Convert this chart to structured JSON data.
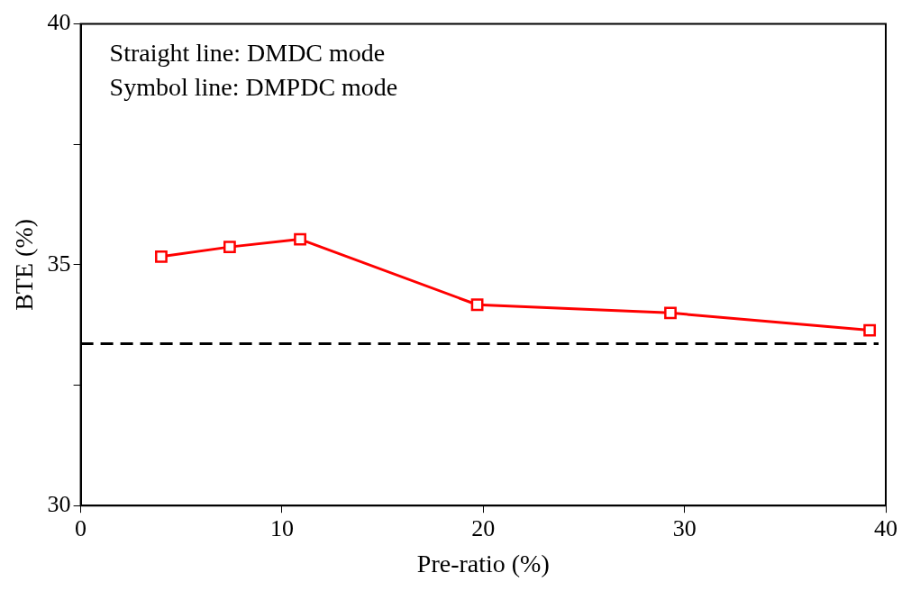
{
  "chart_data": {
    "type": "line",
    "xlabel": "Pre-ratio (%)",
    "ylabel": "BTE (%)",
    "annotations": [
      "Straight line: DMDC mode",
      "Symbol line: DMPDC mode"
    ],
    "x": [
      4.0,
      7.4,
      10.9,
      19.7,
      29.3,
      39.2
    ],
    "series": [
      {
        "color": "#ff0000",
        "values": [
          35.17,
          35.37,
          35.53,
          34.17,
          34.0,
          33.64
        ]
      }
    ],
    "ref_lines": [
      {
        "axis": "y",
        "value": 33.36,
        "color": "#000000",
        "line_style": "dashed"
      }
    ],
    "xlim": [
      0,
      40
    ],
    "xticks": [
      0,
      10,
      20,
      30,
      40
    ],
    "ylim": [
      30,
      40
    ],
    "yticks": [
      30,
      {
        "value": 32.5,
        "label": null
      },
      35,
      {
        "value": 37.5,
        "label": null
      },
      40
    ],
    "grid": false,
    "legend": false,
    "marker": "square",
    "line_style": "solid"
  }
}
